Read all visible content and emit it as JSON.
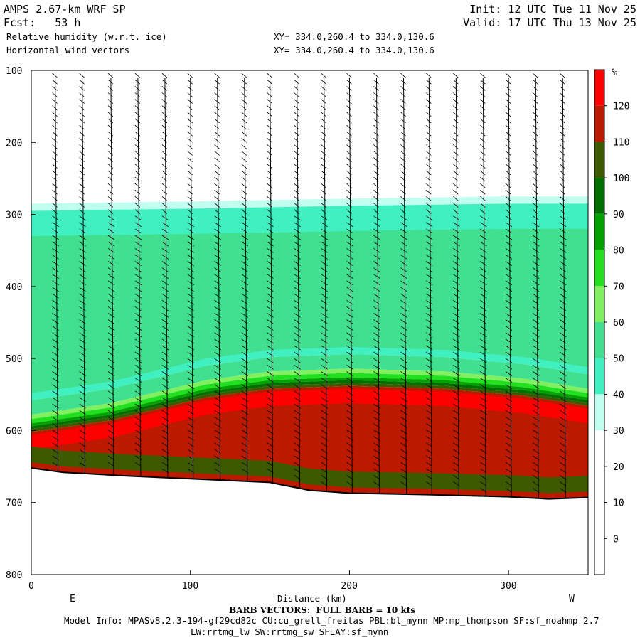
{
  "header": {
    "model": "AMPS 2.67-km WRF SP",
    "fcst": "Fcst:   53 h",
    "init": "Init: 12 UTC Tue 11 Nov 25",
    "valid": "Valid: 17 UTC Thu 13 Nov 25",
    "field1": "Relative humidity (w.r.t. ice)",
    "field2": "Horizontal wind vectors",
    "xy1": "XY= 334.0,260.4 to 334.0,130.6",
    "xy2": "XY= 334.0,260.4 to 334.0,130.6"
  },
  "footer": {
    "barb_note": "BARB VECTORS:  FULL BARB = 10 kts",
    "model_info": "Model Info: MPASv8.2.3-194-gf29cd82c CU:cu_grell_freitas PBL:bl_mynn MP:mp_thompson SF:sf_noahmp 2.7",
    "model_info2": "LW:rrtmg_lw SW:rrtmg_sw SFLAY:sf_mynn"
  },
  "chart_data": {
    "type": "heatmap",
    "title": "Relative humidity (w.r.t. ice)",
    "xlabel": "Distance (km)",
    "ylabel": "",
    "x_ticks": [
      0,
      100,
      200,
      300
    ],
    "x_range": [
      0,
      350
    ],
    "y_ticks": [
      100,
      200,
      300,
      400,
      500,
      600,
      700,
      800
    ],
    "y_range": [
      100,
      800
    ],
    "y_reversed": true,
    "x_end_labels": {
      "left": "E",
      "right": "W"
    },
    "colorbar": {
      "unit": "%",
      "tick_labels": [
        "120",
        "110",
        "100",
        "90",
        "80",
        "70",
        "60",
        "50",
        "40",
        "30",
        "20",
        "10",
        "0"
      ],
      "levels": [
        {
          "lo": 120,
          "color": "#ff0000"
        },
        {
          "lo": 110,
          "color": "#bb1a00"
        },
        {
          "lo": 100,
          "color": "#3e5a00"
        },
        {
          "lo": 90,
          "color": "#006f00"
        },
        {
          "lo": 80,
          "color": "#00a200"
        },
        {
          "lo": 70,
          "color": "#20e020"
        },
        {
          "lo": 60,
          "color": "#80f060"
        },
        {
          "lo": 50,
          "color": "#40e090"
        },
        {
          "lo": 40,
          "color": "#40f0c0"
        },
        {
          "lo": 30,
          "color": "#c0fff0"
        },
        {
          "lo": 20,
          "color": "#ffffff"
        },
        {
          "lo": 10,
          "color": "#ffffff"
        },
        {
          "lo": 0,
          "color": "#ffffff"
        },
        {
          "lo": -10,
          "color": "#ffffff"
        }
      ]
    },
    "terrain_pressure": [
      {
        "x": 0,
        "p": 652
      },
      {
        "x": 20,
        "p": 658
      },
      {
        "x": 60,
        "p": 663
      },
      {
        "x": 100,
        "p": 667
      },
      {
        "x": 150,
        "p": 672
      },
      {
        "x": 175,
        "p": 683
      },
      {
        "x": 200,
        "p": 687
      },
      {
        "x": 250,
        "p": 689
      },
      {
        "x": 300,
        "p": 692
      },
      {
        "x": 325,
        "p": 695
      },
      {
        "x": 350,
        "p": 693
      }
    ],
    "moist_layer_top": [
      {
        "x": 0,
        "p": 588
      },
      {
        "x": 50,
        "p": 572
      },
      {
        "x": 110,
        "p": 540
      },
      {
        "x": 150,
        "p": 528
      },
      {
        "x": 200,
        "p": 524
      },
      {
        "x": 260,
        "p": 528
      },
      {
        "x": 310,
        "p": 538
      },
      {
        "x": 350,
        "p": 552
      }
    ],
    "cloud_top": [
      {
        "x": 0,
        "p": 285
      },
      {
        "x": 100,
        "p": 282
      },
      {
        "x": 200,
        "p": 278
      },
      {
        "x": 300,
        "p": 275
      },
      {
        "x": 350,
        "p": 275
      }
    ],
    "barb_x": [
      15,
      32,
      50,
      67,
      84,
      100,
      117,
      134,
      150,
      167,
      184,
      200,
      217,
      234,
      250,
      267,
      284,
      300,
      317,
      334
    ]
  }
}
